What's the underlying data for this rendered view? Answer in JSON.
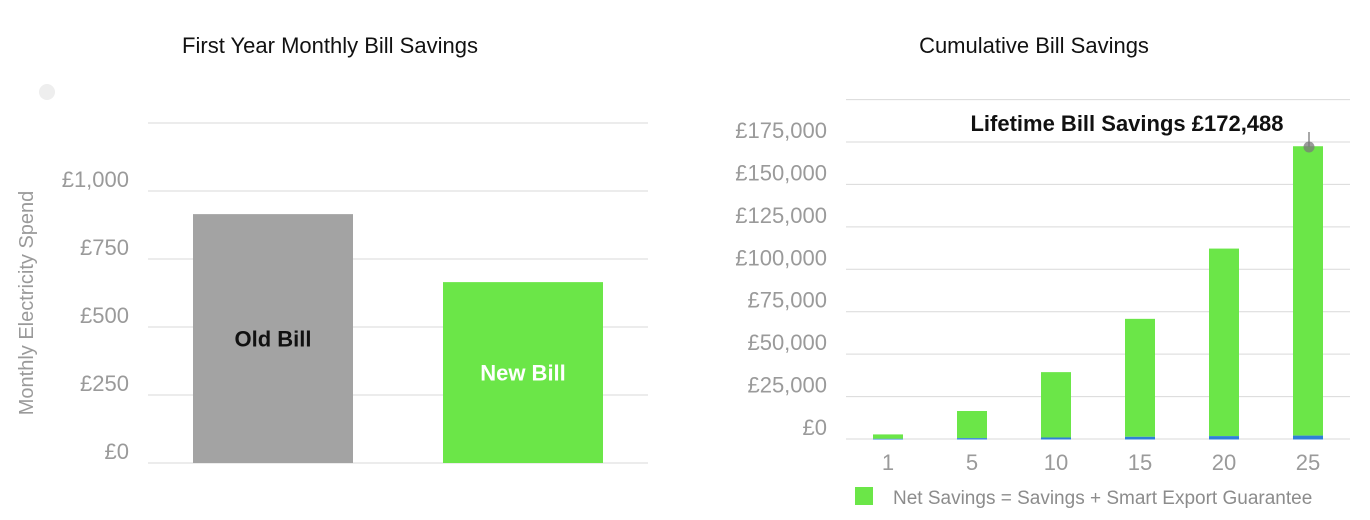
{
  "colors": {
    "old_bill": "#a3a3a3",
    "new_bill": "#6be648",
    "net_savings": "#6be648",
    "export_guarantee": "#2f7fd8",
    "grid": "#d9d9d9",
    "tick_text": "#9a9a9a"
  },
  "chart_data": [
    {
      "type": "bar",
      "title": "First Year Monthly Bill Savings",
      "ylabel": "Monthly Electricity Spend",
      "xlabel": "",
      "ylim": [
        0,
        1000
      ],
      "yticks": [
        "£0",
        "£250",
        "£500",
        "£750",
        "£1,000"
      ],
      "categories": [
        "Old Bill",
        "New Bill"
      ],
      "values": [
        915,
        665
      ],
      "grid": true
    },
    {
      "type": "bar",
      "stacked": true,
      "title": "Cumulative Bill Savings",
      "xlabel": "",
      "ylabel": "",
      "ylim": [
        0,
        175000
      ],
      "yticks": [
        "£0",
        "£25,000",
        "£50,000",
        "£75,000",
        "£100,000",
        "£125,000",
        "£150,000",
        "£175,000"
      ],
      "categories": [
        "1",
        "5",
        "10",
        "15",
        "20",
        "25"
      ],
      "series": [
        {
          "name": "Net Savings = Savings + Smart Export Guarantee",
          "values": [
            2600,
            16000,
            38500,
            69500,
            110500,
            170500
          ]
        },
        {
          "values": [
            100,
            500,
            900,
            1300,
            1700,
            2000
          ]
        }
      ],
      "annotation": "Lifetime Bill Savings £172,488",
      "legend_position": "bottom",
      "grid": true
    }
  ]
}
